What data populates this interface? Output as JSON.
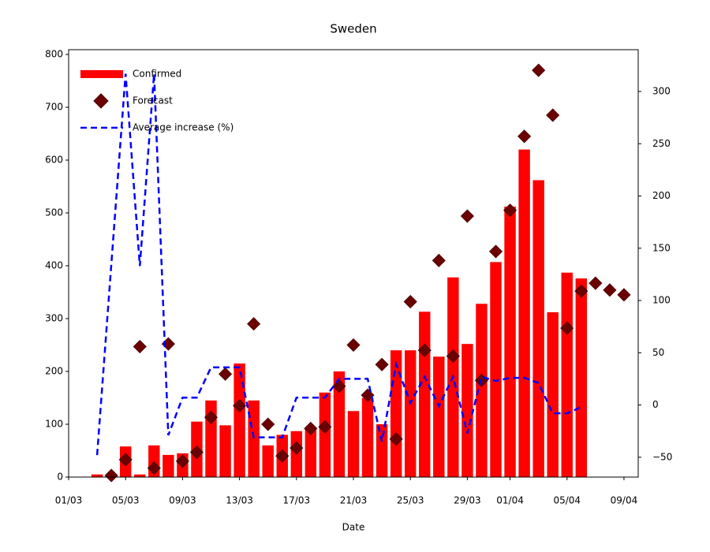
{
  "chart_data": {
    "type": "combo",
    "title": "Sweden",
    "x_label": "Date",
    "x": [
      "03/03",
      "04/03",
      "05/03",
      "06/03",
      "07/03",
      "08/03",
      "09/03",
      "10/03",
      "11/03",
      "12/03",
      "13/03",
      "14/03",
      "15/03",
      "16/03",
      "17/03",
      "18/03",
      "19/03",
      "20/03",
      "21/03",
      "22/03",
      "23/03",
      "24/03",
      "25/03",
      "26/03",
      "27/03",
      "28/03",
      "29/03",
      "30/03",
      "31/03",
      "01/04",
      "02/04",
      "03/04",
      "04/04",
      "05/04",
      "06/04",
      "07/04",
      "08/04",
      "09/04"
    ],
    "series": [
      {
        "name": "Confirmed",
        "type": "bar",
        "color": "#ff0000",
        "values": [
          5,
          2,
          58,
          5,
          60,
          42,
          45,
          105,
          145,
          98,
          215,
          145,
          60,
          80,
          87,
          93,
          160,
          200,
          125,
          150,
          100,
          240,
          240,
          313,
          228,
          378,
          252,
          328,
          407,
          512,
          620,
          562,
          312,
          387,
          376,
          null,
          null,
          null
        ]
      },
      {
        "name": "Forecast",
        "type": "scatter",
        "color": "#6b0000",
        "values": [
          null,
          3,
          33,
          247,
          17,
          252,
          30,
          47,
          113,
          195,
          135,
          290,
          100,
          40,
          55,
          92,
          95,
          172,
          250,
          155,
          213,
          72,
          332,
          240,
          410,
          229,
          494,
          183,
          427,
          505,
          645,
          770,
          685,
          282,
          352,
          367,
          354,
          345
        ]
      },
      {
        "name": "Average increase (%)",
        "type": "line",
        "color": "#0000ff",
        "axis": "y2",
        "values": [
          -48,
          135,
          317,
          133,
          317,
          -29,
          7,
          7,
          36,
          36,
          36,
          -31,
          -31,
          -31,
          7,
          7,
          7,
          25,
          25,
          25,
          -35,
          39,
          2,
          27,
          -1,
          27,
          -27,
          27,
          23,
          26,
          26,
          21,
          -8,
          -8,
          -2,
          null,
          null,
          null
        ]
      }
    ],
    "xlim": [
      "01/03",
      "10/04"
    ],
    "xticks": [
      "01/03",
      "05/03",
      "09/03",
      "13/03",
      "17/03",
      "21/03",
      "25/03",
      "29/03",
      "01/04",
      "05/04",
      "09/04"
    ],
    "ylim": [
      0,
      809
    ],
    "yticks": [
      0,
      100,
      200,
      300,
      400,
      500,
      600,
      700,
      800
    ],
    "y2lim": [
      -69,
      340
    ],
    "y2ticks": [
      {
        "value": -50,
        "label": "−50"
      },
      0,
      50,
      100,
      150,
      200,
      250,
      300
    ],
    "y2_color": "#0000ff",
    "legend": "upper left"
  }
}
